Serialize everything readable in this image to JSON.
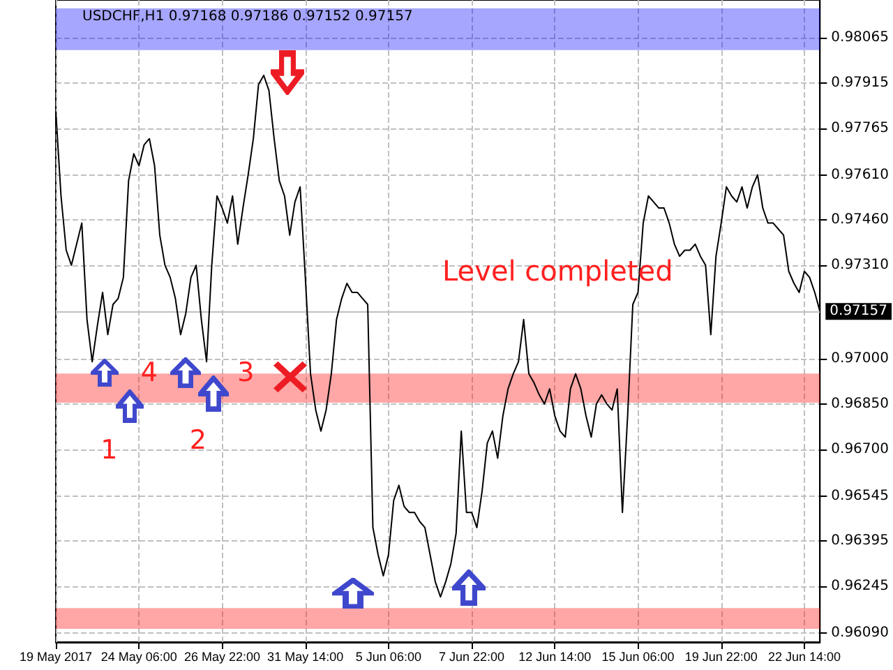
{
  "chart_data": {
    "type": "line",
    "title": "USDCHF,H1 0.97168 0.97186 0.97152 0.97157",
    "categories": [
      "19 May 2017",
      null,
      null,
      null,
      null,
      null,
      null,
      null,
      null,
      null,
      null,
      null,
      null,
      null,
      null,
      null,
      "24 May 06:00",
      null,
      null,
      null,
      null,
      null,
      null,
      null,
      null,
      null,
      null,
      null,
      null,
      null,
      null,
      null,
      "26 May 22:00",
      null,
      null,
      null,
      null,
      null,
      null,
      null,
      null,
      null,
      null,
      null,
      null,
      null,
      null,
      null,
      "31 May 14:00",
      null,
      null,
      null,
      null,
      null,
      null,
      null,
      null,
      null,
      null,
      null,
      null,
      null,
      null,
      null,
      "5 Jun 06:00",
      null,
      null,
      null,
      null,
      null,
      null,
      null,
      null,
      null,
      null,
      null,
      null,
      null,
      null,
      null,
      "7 Jun 22:00",
      null,
      null,
      null,
      null,
      null,
      null,
      null,
      null,
      null,
      null,
      null,
      null,
      null,
      null,
      null,
      "12 Jun 14:00",
      null,
      null,
      null,
      null,
      null,
      null,
      null,
      null,
      null,
      null,
      null,
      null,
      null,
      null,
      null,
      "15 Jun 06:00",
      null,
      null,
      null,
      null,
      null,
      null,
      null,
      null,
      null,
      null,
      null,
      null,
      null,
      null,
      null,
      "19 Jun 22:00",
      null,
      null,
      null,
      null,
      null,
      null,
      null,
      null,
      null,
      null,
      null,
      null,
      null,
      null,
      null,
      "22 Jun 14:00",
      null,
      null,
      null
    ],
    "series": [
      {
        "color": "#000000",
        "values": [
          0.9782,
          0.9754,
          0.9736,
          0.9731,
          0.9738,
          0.9745,
          0.9713,
          0.9699,
          0.9711,
          0.9722,
          0.9708,
          0.9718,
          0.972,
          0.9727,
          0.9759,
          0.9768,
          0.9764,
          0.9771,
          0.9773,
          0.9764,
          0.9741,
          0.9731,
          0.9727,
          0.972,
          0.9708,
          0.9715,
          0.9727,
          0.9731,
          0.9713,
          0.9699,
          0.9731,
          0.9754,
          0.975,
          0.9745,
          0.9754,
          0.9738,
          0.975,
          0.9761,
          0.9773,
          0.9791,
          0.9794,
          0.9789,
          0.9773,
          0.9759,
          0.9754,
          0.9741,
          0.9752,
          0.9757,
          0.9727,
          0.9695,
          0.9683,
          0.9676,
          0.9683,
          0.9695,
          0.9713,
          0.972,
          0.9725,
          0.9722,
          0.9722,
          0.972,
          0.9718,
          0.9644,
          0.9635,
          0.9628,
          0.9635,
          0.9653,
          0.9658,
          0.9651,
          0.9649,
          0.9649,
          0.9646,
          0.9644,
          0.9635,
          0.9626,
          0.9621,
          0.9626,
          0.9632,
          0.9642,
          0.9676,
          0.9649,
          0.9649,
          0.9644,
          0.9656,
          0.9672,
          0.9676,
          0.9667,
          0.9681,
          0.969,
          0.9695,
          0.9699,
          0.9713,
          0.9695,
          0.9692,
          0.9688,
          0.9685,
          0.969,
          0.9681,
          0.9676,
          0.9674,
          0.969,
          0.9695,
          0.969,
          0.9681,
          0.9674,
          0.9685,
          0.9688,
          0.9685,
          0.9683,
          0.969,
          0.9649,
          0.9681,
          0.9718,
          0.9722,
          0.9745,
          0.9754,
          0.9752,
          0.975,
          0.975,
          0.9745,
          0.9738,
          0.9734,
          0.9736,
          0.9736,
          0.9738,
          0.9734,
          0.9731,
          0.9708,
          0.9734,
          0.9745,
          0.9757,
          0.9754,
          0.9752,
          0.9757,
          0.975,
          0.9757,
          0.9761,
          0.975,
          0.9745,
          0.9745,
          0.9743,
          0.9741,
          0.9729,
          0.9725,
          0.9722,
          0.9729,
          0.9727,
          0.9722,
          0.97157
        ]
      }
    ],
    "ylim": [
      0.9606,
      0.9819
    ],
    "yticks": [
      0.98065,
      0.97915,
      0.97765,
      {
        "value": 0.9761,
        "label": "0.97610"
      },
      {
        "value": 0.9746,
        "label": "0.97460"
      },
      {
        "value": 0.9731,
        "label": "0.97310"
      },
      {
        "value": 0.97,
        "label": "0.97000"
      },
      {
        "value": 0.9685,
        "label": "0.96850"
      },
      {
        "value": 0.967,
        "label": "0.96700"
      },
      0.96545,
      0.96395,
      0.96245,
      {
        "value": 0.9609,
        "label": "0.96090"
      }
    ],
    "grid": true,
    "ref_lines": [
      {
        "axis": "y",
        "value": 0.97157,
        "label": "0.97157",
        "color": "#c0c0c0"
      }
    ],
    "bands": [
      {
        "axis": "y",
        "from": 0.98024,
        "to": 0.98162,
        "color": "#0000ff"
      },
      {
        "axis": "y",
        "from": 0.96854,
        "to": 0.96951,
        "color": "#ff0000"
      },
      {
        "axis": "y",
        "from": 0.96104,
        "to": 0.96173,
        "color": "#ff0000"
      }
    ],
    "annotations": [
      "Level completed",
      "1",
      "2",
      "3",
      "4"
    ]
  }
}
